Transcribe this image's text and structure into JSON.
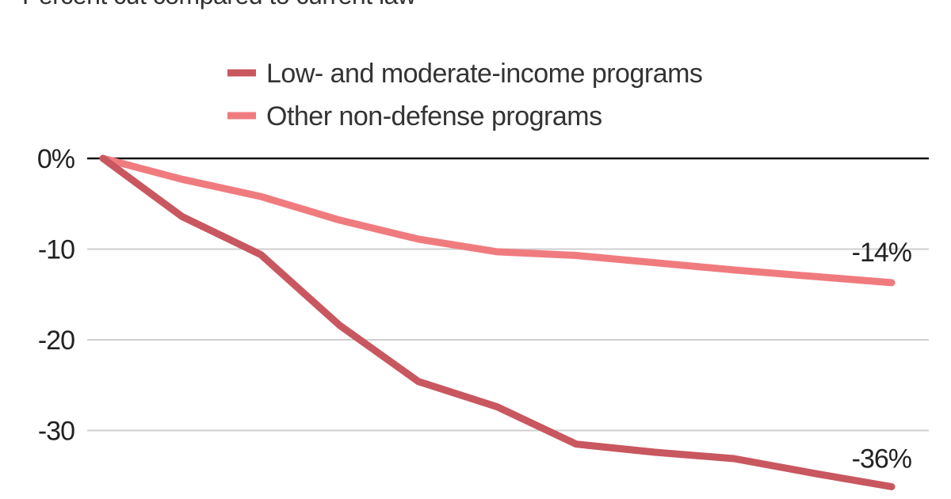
{
  "subtitle": "Percent cut compared to current law",
  "chart_data": {
    "type": "line",
    "title": "",
    "subtitle": "Percent cut compared to current law",
    "xlabel": "",
    "ylabel": "",
    "x": [
      1,
      2,
      3,
      4,
      5,
      6,
      7,
      8,
      9,
      10,
      11
    ],
    "ylim": [
      -36,
      0
    ],
    "y_ticks": [
      {
        "value": 0,
        "label": "0%"
      },
      {
        "value": -10,
        "label": "-10"
      },
      {
        "value": -20,
        "label": "-20"
      },
      {
        "value": -30,
        "label": "-30"
      }
    ],
    "grid": true,
    "legend_position": "top-center",
    "series": [
      {
        "name": "Low- and moderate-income programs",
        "color": "#c9575f",
        "values": [
          0,
          -6.4,
          -10.6,
          -18.4,
          -24.6,
          -27.4,
          -31.5,
          -32.4,
          -33.1,
          -34.7,
          -36.2
        ],
        "end_label": "-36%"
      },
      {
        "name": "Other non-defense programs",
        "color": "#f07b7f",
        "values": [
          0,
          -2.3,
          -4.2,
          -6.8,
          -8.9,
          -10.3,
          -10.7,
          -11.5,
          -12.3,
          -13.0,
          -13.7
        ],
        "end_label": "-14%"
      }
    ]
  }
}
